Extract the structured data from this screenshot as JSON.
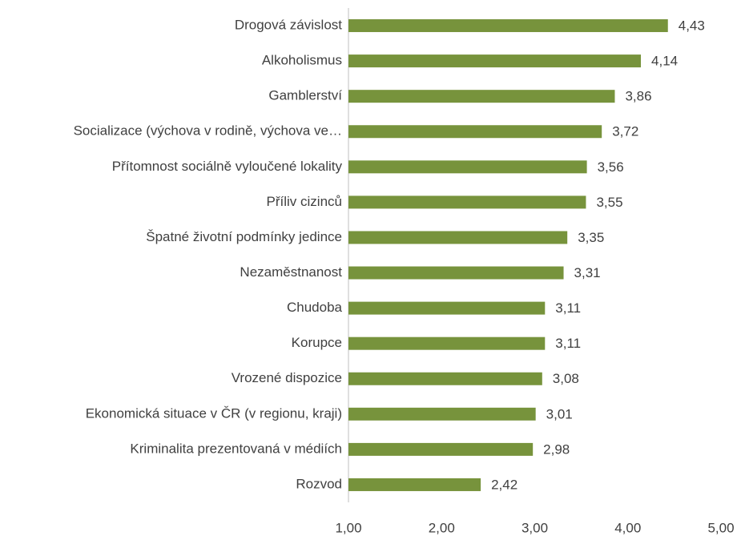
{
  "chart_data": {
    "type": "barh",
    "categories": [
      "Drogová závislost",
      "Alkoholismus",
      "Gamblerství",
      "Socializace (výchova v rodině, výchova ve…",
      "Přítomnost sociálně vyloučené lokality",
      "Příliv cizinců",
      "Špatné životní podmínky jedince",
      "Nezaměstnanost",
      "Chudoba",
      "Korupce",
      "Vrozené dispozice",
      "Ekonomická situace v ČR (v regionu, kraji)",
      "Kriminalita prezentovaná v médiích",
      "Rozvod"
    ],
    "values": [
      4.43,
      4.14,
      3.86,
      3.72,
      3.56,
      3.55,
      3.35,
      3.31,
      3.11,
      3.11,
      3.08,
      3.01,
      2.98,
      2.42
    ],
    "value_labels": [
      "4,43",
      "4,14",
      "3,86",
      "3,72",
      "3,56",
      "3,55",
      "3,35",
      "3,31",
      "3,11",
      "3,11",
      "3,08",
      "3,01",
      "2,98",
      "2,42"
    ],
    "color": "#77933c",
    "xlim": [
      1,
      5
    ],
    "xticks": [
      {
        "value": 1,
        "label": "1,00"
      },
      {
        "value": 2,
        "label": "2,00"
      },
      {
        "value": 3,
        "label": "3,00"
      },
      {
        "value": 4,
        "label": "4,00"
      },
      {
        "value": 5,
        "label": "5,00"
      }
    ],
    "grid": false
  }
}
